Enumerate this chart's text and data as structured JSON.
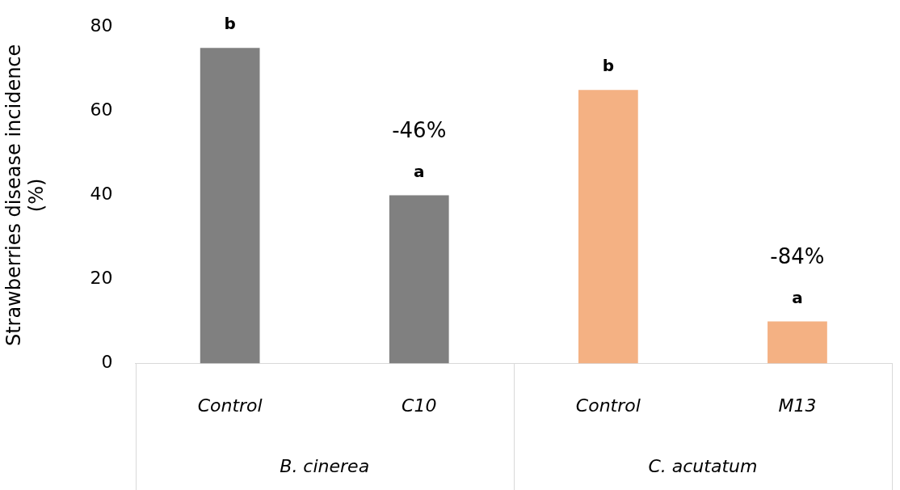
{
  "chart_data": {
    "type": "bar",
    "ylabel": "Strawberries disease incidence (%)",
    "categories": [
      "Control",
      "C10",
      "Control",
      "M13"
    ],
    "values": [
      75,
      40,
      65,
      10
    ],
    "colors": [
      "#808080",
      "#808080",
      "#f4b183",
      "#f4b183"
    ],
    "value_labels": [
      "b",
      "a",
      "b",
      "a"
    ],
    "ylim": [
      0,
      80
    ],
    "yticks": [
      0,
      20,
      40,
      60,
      80
    ],
    "grid": false,
    "legend": false,
    "annotations": [
      "B. cinerea",
      "C. acutatum",
      {
        "text": "-46%",
        "x": "C10",
        "y": 40
      },
      {
        "text": "-84%",
        "x": "M13",
        "y": 10
      }
    ]
  }
}
